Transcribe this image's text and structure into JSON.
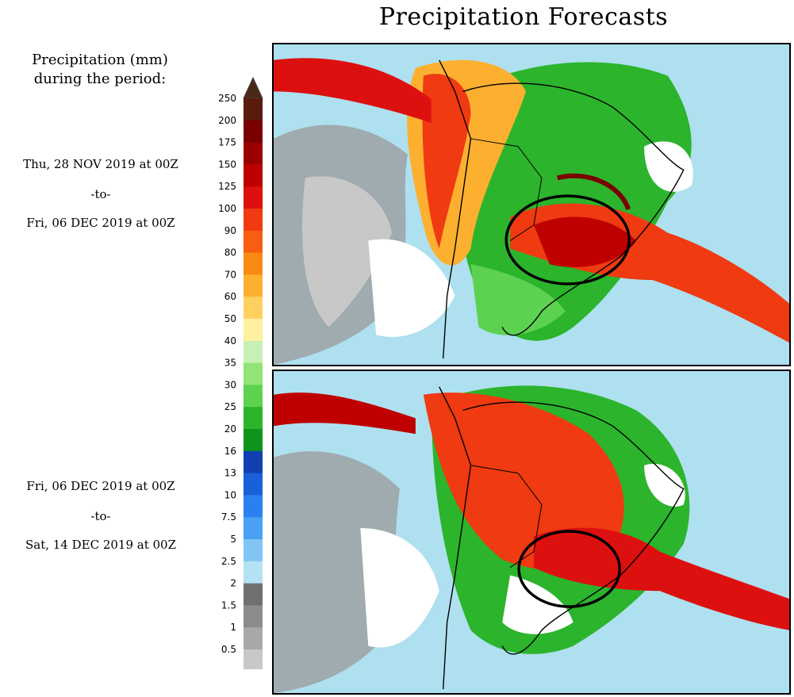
{
  "title": "Precipitation Forecasts",
  "legend": {
    "heading": [
      "Precipitation (mm)",
      "during the period:"
    ],
    "levels": [
      "250",
      "200",
      "175",
      "150",
      "125",
      "100",
      "90",
      "80",
      "70",
      "60",
      "50",
      "40",
      "35",
      "30",
      "25",
      "20",
      "16",
      "13",
      "10",
      "7.5",
      "5",
      "2.5",
      "2",
      "1.5",
      "1",
      "0.5"
    ],
    "colors": [
      "#5a1a0c",
      "#7a0000",
      "#9a0000",
      "#be0000",
      "#dd1010",
      "#ef3a12",
      "#f75e12",
      "#fa8a12",
      "#fdb030",
      "#fed060",
      "#fff0a0",
      "#c8f0b4",
      "#90e478",
      "#5cd250",
      "#2cb42c",
      "#0c941c",
      "#1040b0",
      "#1a60d8",
      "#2a80ee",
      "#4aa0f2",
      "#82c4f4",
      "#b4e2f4",
      "#707070",
      "#8c8c8c",
      "#a8a8a8",
      "#c8c8c8"
    ],
    "top_arrow_color": "#4a2818",
    "bottom_arrow_color": "#ffffff"
  },
  "periods": [
    {
      "start": "Thu, 28 NOV 2019 at 00Z",
      "separator": "-to-",
      "end": "Fri, 06 DEC 2019 at 00Z"
    },
    {
      "start": "Fri, 06 DEC 2019 at 00Z",
      "separator": "-to-",
      "end": "Sat, 14 DEC 2019 at 00Z"
    }
  ]
}
